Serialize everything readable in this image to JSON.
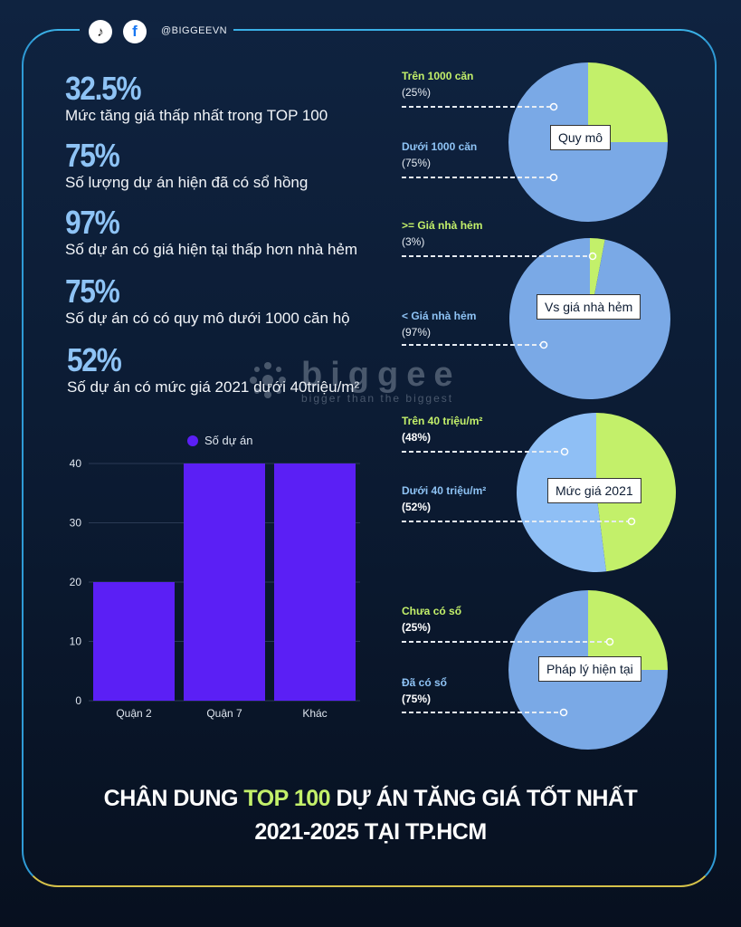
{
  "social": {
    "handle": "@BIGGEEVN",
    "icons": [
      "tiktok-icon",
      "facebook-icon"
    ]
  },
  "stats": [
    {
      "value": "32.5%",
      "label": "Mức tăng giá thấp nhất trong TOP 100"
    },
    {
      "value": "75%",
      "label": "Số lượng dự án hiện đã có sổ hồng"
    },
    {
      "value": "97%",
      "label": "Số dự án có giá hiện tại thấp hơn nhà hẻm"
    },
    {
      "value": "75%",
      "label": "Số dự án có có quy mô dưới 1000 căn hộ"
    },
    {
      "value": "52%",
      "label": "Số dự án có mức giá 2021 dưới 40triệu/m²"
    }
  ],
  "watermark": {
    "brand": "biggee",
    "tagline": "bigger than the biggest"
  },
  "colors": {
    "accent_green": "#c3f06a",
    "accent_blue": "#8ec3f5",
    "bar": "#5b1ff5",
    "pie_blue": "#7aa9e6",
    "pie_blue_light": "#8fbff5"
  },
  "chart_data": [
    {
      "type": "pie",
      "title": "Quy mô",
      "slices": [
        {
          "label": "Trên 1000 căn",
          "value": 25,
          "value_text": "(25%)",
          "color": "#c3f06a"
        },
        {
          "label": "Dưới 1000 căn",
          "value": 75,
          "value_text": "(75%)",
          "color": "#7aa9e6"
        }
      ]
    },
    {
      "type": "pie",
      "title": "Vs giá nhà hẻm",
      "slices": [
        {
          "label": ">= Giá nhà hẻm",
          "value": 3,
          "value_text": "(3%)",
          "color": "#c3f06a"
        },
        {
          "label": "< Giá nhà hẻm",
          "value": 97,
          "value_text": "(97%)",
          "color": "#7aa9e6"
        }
      ]
    },
    {
      "type": "pie",
      "title": "Mức giá 2021",
      "slices": [
        {
          "label": "Trên 40 triệu/m²",
          "value": 48,
          "value_text": "(48%)",
          "color": "#c3f06a"
        },
        {
          "label": "Dưới 40 triệu/m²",
          "value": 52,
          "value_text": "(52%)",
          "color": "#8fbff5"
        }
      ]
    },
    {
      "type": "pie",
      "title": "Pháp lý hiện tại",
      "slices": [
        {
          "label": "Chưa có sổ",
          "value": 25,
          "value_text": "(25%)",
          "color": "#c3f06a"
        },
        {
          "label": "Đã có sổ",
          "value": 75,
          "value_text": "(75%)",
          "color": "#7aa9e6"
        }
      ]
    },
    {
      "type": "bar",
      "categories": [
        "Quận 2",
        "Quận 7",
        "Khác"
      ],
      "series": [
        {
          "name": "Số dự án",
          "values": [
            20,
            40,
            40
          ]
        }
      ],
      "ylim": [
        0,
        40
      ],
      "yticks": [
        0,
        10,
        20,
        30,
        40
      ],
      "legend": "top-center",
      "grid": true
    }
  ],
  "title": {
    "line1_pre": "CHÂN DUNG ",
    "line1_highlight": "TOP 100",
    "line1_post": " DỰ ÁN TĂNG GIÁ TỐT NHẤT",
    "line2": "2021-2025 TẠI TP.HCM"
  }
}
